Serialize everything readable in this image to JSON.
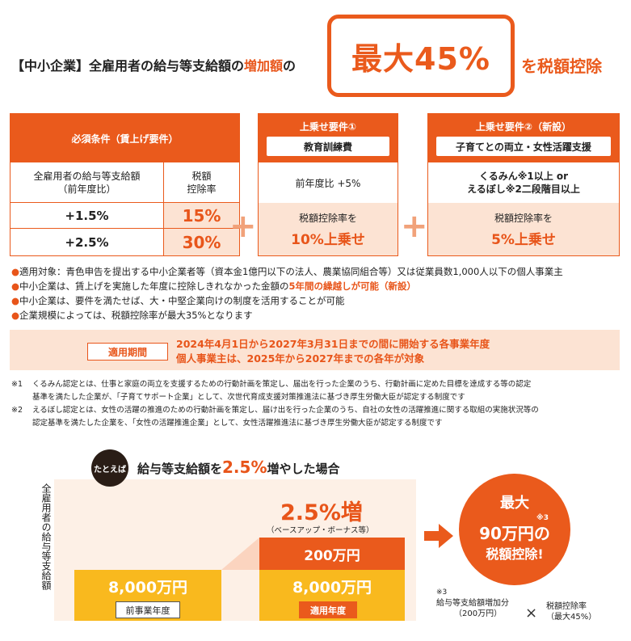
{
  "header": {
    "left_bracket": "【中小企業】",
    "left_text": "全雇用者の給与等支給額の",
    "left_highlight": "増加額",
    "left_tail": "の",
    "box_text": "最大45%",
    "right_text": "を税額控除"
  },
  "panel1": {
    "title": "必須条件（賃上げ要件）",
    "col1_header_l1": "全雇用者の給与等支給額",
    "col1_header_l2": "（前年度比）",
    "col2_header_l1": "税額",
    "col2_header_l2": "控除率",
    "rows": [
      {
        "rate": "+1.5%",
        "deduction": "15%"
      },
      {
        "rate": "+2.5%",
        "deduction": "30%"
      }
    ]
  },
  "panel2": {
    "title": "上乗せ要件①",
    "subtitle": "教育訓練費",
    "condition": "前年度比 +5%",
    "result_l1": "税額控除率を",
    "result_l2": "10%上乗せ"
  },
  "panel3": {
    "title": "上乗せ要件②（新設）",
    "subtitle": "子育てとの両立・女性活躍支援",
    "condition_l1": "くるみん※1以上 or",
    "condition_l2": "えるぼし※2二段階目以上",
    "result_l1": "税額控除率を",
    "result_l2": "5%上乗せ"
  },
  "plus_sign": "+",
  "bullets": [
    "適用対象：青色申告を提出する中小企業者等（資本金1億円以下の法人、農業協同組合等）又は従業員数1,000人以下の個人事業主",
    "中小企業は、賃上げを実施した年度に控除しきれなかった金額の",
    "5年間の繰越しが可能（新設）",
    "中小企業は、要件を満たせば、大・中堅企業向けの制度を活用することが可能",
    "企業規模によっては、税額控除率が最大35%となります"
  ],
  "bullet_marker": "●",
  "period": {
    "tag": "適用期間",
    "line1": "2024年4月1日から2027年3月31日までの間に開始する各事業年度",
    "line2": "個人事業主は、2025年から2027年までの各年が対象"
  },
  "notes": {
    "n1_mark": "※1",
    "n1_l1": "くるみん認定とは、仕事と家庭の両立を支援するための行動計画を策定し、届出を行った企業のうち、行動計画に定めた目標を達成する等の認定",
    "n1_l2": "基準を満たした企業が、「子育てサポート企業」として、次世代育成支援対策推進法に基づき厚生労働大臣が認定する制度です",
    "n2_mark": "※2",
    "n2_l1": "えるぼし認定とは、女性の活躍の推進のための行動計画を策定し、届け出を行った企業のうち、自社の女性の活躍推進に関する取組の実施状況等の",
    "n2_l2": "認定基準を満たした企業を、「女性の活躍推進企業」として、女性活躍推進法に基づき厚生労働大臣が認定する制度です"
  },
  "example": {
    "badge": "たとえば",
    "title_a": "給与等支給額を",
    "title_b": "2.5%",
    "title_c": "増やした場合",
    "yaxis": "全雇用者の給与等支給額",
    "increase_big": "2.5%増",
    "increase_note": "（ベースアップ・ボーナス等）",
    "bar1_value": "8,000万円",
    "bar2_value": "8,000万円",
    "bar2_top_value": "200万円",
    "bar1_tag": "前事業年度",
    "bar2_tag": "適用年度",
    "result_l1": "最大",
    "result_mark": "※3",
    "result_l2": "90万円の",
    "result_l3": "税額控除!",
    "calc_mark": "※3",
    "calc_a_l1": "給与等支給額増加分",
    "calc_a_l2": "（200万円）",
    "calc_x": "×",
    "calc_b_l1": "税額控除率",
    "calc_b_l2": "（最大45%）"
  },
  "colors": {
    "accent": "#ea5a1c",
    "peach": "#fce3d3",
    "yellow": "#f9b91e",
    "plus": "#f1a27a"
  }
}
